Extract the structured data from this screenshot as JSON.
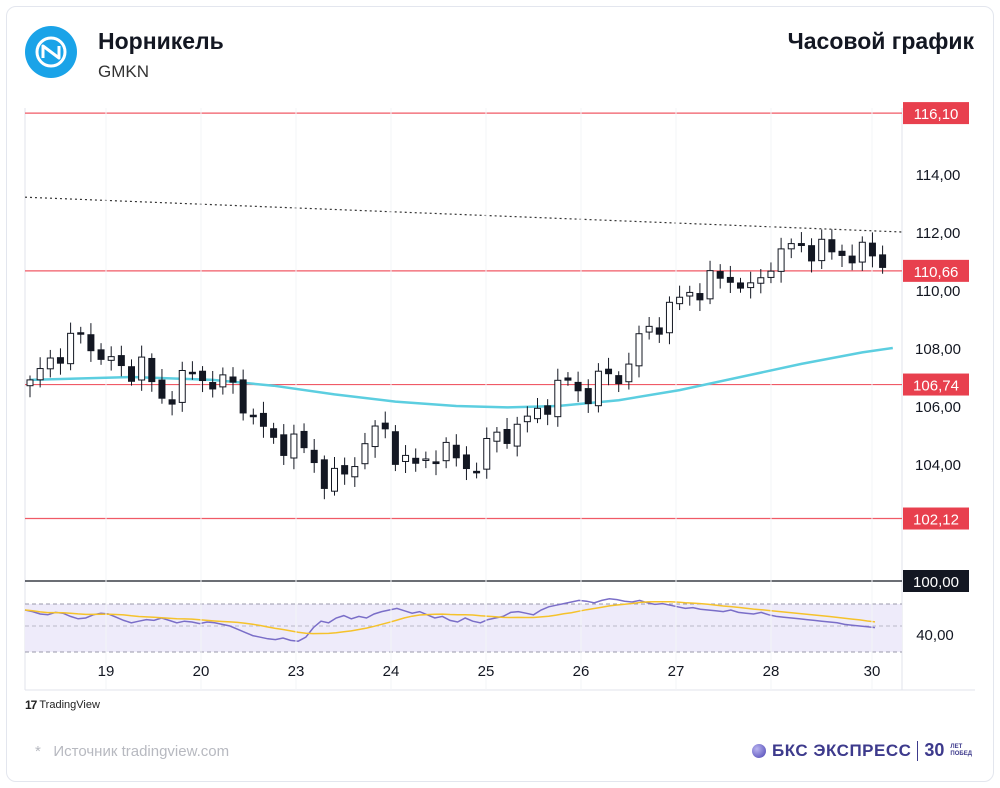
{
  "header": {
    "company": "Норникель",
    "ticker": "GMKN",
    "chart_title": "Часовой график"
  },
  "footer": {
    "tradingview": "TradingView",
    "source": "Источник tradingview.com",
    "source_star": "*",
    "brand": "БКС ЭКСПРЕСС",
    "brand_30": "30",
    "brand_small_1": "ЛЕТ",
    "brand_small_2": "ПОБЕД"
  },
  "colors": {
    "logo": "#1aa3e8",
    "level_line": "#f05a66",
    "level_badge": "#e8404e",
    "ma": "#5ccee0",
    "rsi": "#7a6ec8",
    "rsi_ma": "#f5c22b",
    "rsi_band": "#eeebfa",
    "candle": "#131722"
  },
  "chart_data": {
    "type": "candlestick",
    "x_ticks": [
      "19",
      "20",
      "23",
      "24",
      "25",
      "26",
      "27",
      "28",
      "30"
    ],
    "y_ticks": [
      "114,00",
      "112,00",
      "110,00",
      "108,00",
      "106,00",
      "104,00"
    ],
    "ylim": [
      99.5,
      116.5
    ],
    "levels": [
      {
        "label": "116,10",
        "value": 116.1
      },
      {
        "label": "110,66",
        "value": 110.66
      },
      {
        "label": "106,74",
        "value": 106.74
      },
      {
        "label": "102,12",
        "value": 102.12
      }
    ],
    "base_line": {
      "label": "100,00",
      "value": 100.0
    },
    "trend_line": {
      "from": [
        0,
        113.2
      ],
      "to": [
        85,
        112.0
      ]
    },
    "ma_line": [
      [
        0,
        106.9
      ],
      [
        10,
        107.0
      ],
      [
        18,
        106.9
      ],
      [
        24,
        106.7
      ],
      [
        30,
        106.4
      ],
      [
        36,
        106.15
      ],
      [
        42,
        106.0
      ],
      [
        47,
        105.95
      ],
      [
        52,
        106.0
      ],
      [
        58,
        106.2
      ],
      [
        64,
        106.55
      ],
      [
        70,
        107.0
      ],
      [
        76,
        107.45
      ],
      [
        82,
        107.85
      ],
      [
        85,
        108.0
      ]
    ],
    "candles_anchor_close": [
      106.7,
      107.5,
      108.2,
      108.3,
      107.7,
      107.1,
      107.6,
      106.0,
      106.9,
      107.0,
      106.9,
      106.6,
      105.7,
      104.7,
      104.9,
      104.3,
      103.5,
      103.5,
      104.8,
      105.2,
      104.2,
      103.8,
      104.6,
      104.1,
      103.9,
      104.9,
      105.2,
      105.5,
      106.3,
      106.8,
      106.4,
      107.0,
      107.1,
      108.4,
      109.0,
      109.6,
      110.1,
      110.3,
      110.5,
      109.8,
      111.1,
      111.4,
      111.55,
      111.25,
      111.3,
      111.2,
      111.1
    ],
    "rsi": {
      "value_tick": "40,00",
      "upper": 70,
      "lower": 30,
      "values": [
        60,
        58,
        55,
        54,
        57,
        56,
        52,
        49,
        50,
        54,
        56,
        55,
        51,
        47,
        44,
        46,
        48,
        47,
        50,
        47,
        44,
        46,
        45,
        43,
        45,
        44,
        42,
        40,
        36,
        32,
        28,
        26,
        24,
        23,
        25,
        22,
        21,
        26,
        38,
        46,
        44,
        50,
        53,
        49,
        52,
        50,
        55,
        58,
        60,
        62,
        59,
        56,
        58,
        54,
        50,
        52,
        47,
        45,
        50,
        46,
        44,
        48,
        50,
        52,
        57,
        58,
        56,
        54,
        60,
        64,
        66,
        68,
        70,
        72,
        71,
        69,
        72,
        74,
        73,
        71,
        70,
        72,
        69,
        67,
        68,
        66,
        64,
        62,
        63,
        61,
        60,
        59,
        58,
        60,
        57,
        56,
        55,
        57,
        54,
        52,
        51,
        50,
        49,
        48,
        47,
        46,
        45,
        44,
        42,
        41,
        40,
        39,
        38
      ]
    }
  }
}
